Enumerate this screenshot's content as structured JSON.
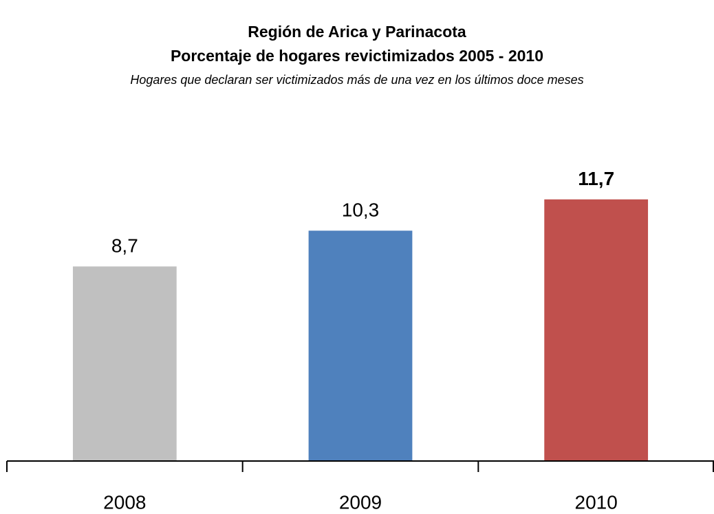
{
  "chart_data": {
    "type": "bar",
    "title": "Región de Arica y Parinacota",
    "subtitle": "Porcentaje de hogares revictimizados 2005 - 2010",
    "note": "Hogares que declaran ser victimizados más de una vez en los últimos doce meses",
    "categories": [
      "2008",
      "2009",
      "2010"
    ],
    "values": [
      8.7,
      10.3,
      11.7
    ],
    "value_labels": [
      "8,7",
      "10,3",
      "11,7"
    ],
    "colors": [
      "#c0c0c0",
      "#4f81bd",
      "#c0504d"
    ],
    "ylim": [
      0,
      12
    ]
  }
}
